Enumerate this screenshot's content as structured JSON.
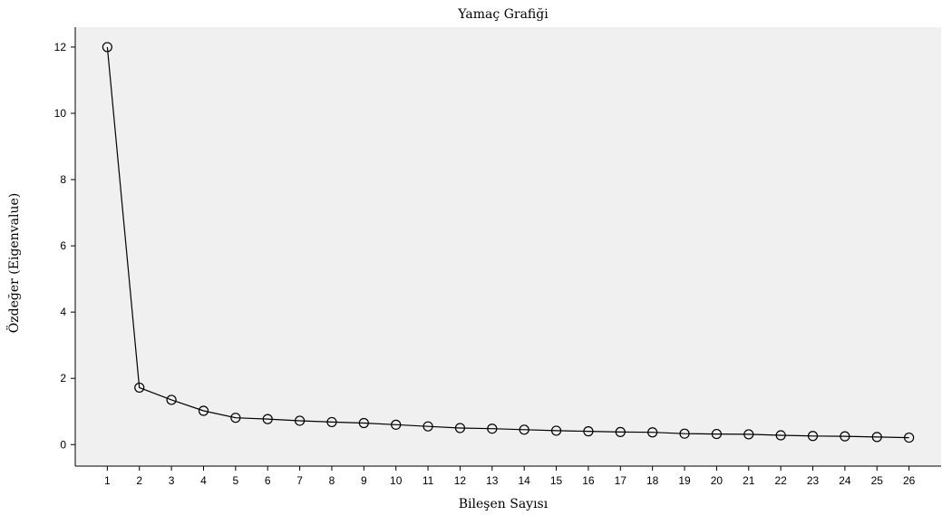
{
  "chart_data": {
    "type": "line",
    "title": "Yamaç Grafiği",
    "xlabel": "Bileşen Sayısı",
    "ylabel": "Özdeğer (Eigenvalue)",
    "x": [
      1,
      2,
      3,
      4,
      5,
      6,
      7,
      8,
      9,
      10,
      11,
      12,
      13,
      14,
      15,
      16,
      17,
      18,
      19,
      20,
      21,
      22,
      23,
      24,
      25,
      26
    ],
    "values": [
      12.0,
      1.72,
      1.35,
      1.02,
      0.81,
      0.77,
      0.72,
      0.68,
      0.65,
      0.6,
      0.55,
      0.5,
      0.48,
      0.45,
      0.42,
      0.4,
      0.38,
      0.37,
      0.33,
      0.32,
      0.31,
      0.28,
      0.26,
      0.25,
      0.23,
      0.21
    ],
    "yticks": [
      0,
      2,
      4,
      6,
      8,
      10,
      12
    ],
    "xlim": [
      0,
      27
    ],
    "ylim": [
      -0.65,
      12.6
    ],
    "grid": false,
    "marker": "open-circle",
    "colors": {
      "line": "#000000",
      "plot_bg": "#f0f0f0"
    }
  }
}
